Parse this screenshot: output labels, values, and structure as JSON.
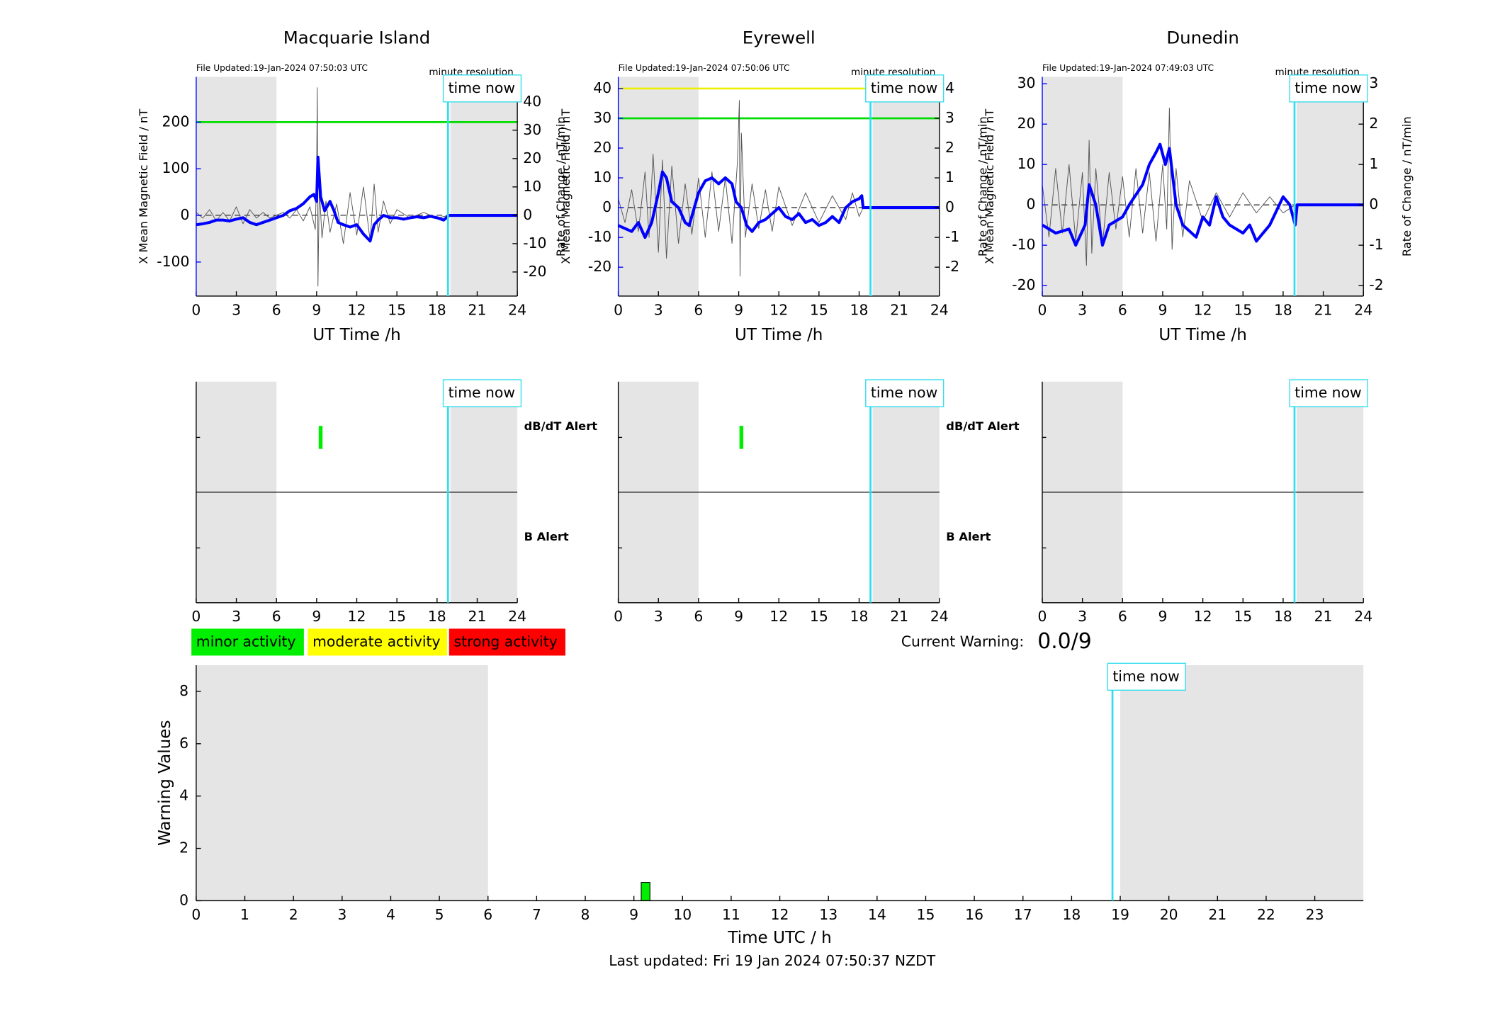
{
  "chart_data": [
    {
      "type": "line",
      "title": "Macquarie Island",
      "file_updated": "File Updated:19-Jan-2024 07:50:03 UTC",
      "resolution": "minute resolution",
      "xlabel": "UT Time /h",
      "ylabel": "X Mean Magnetic Field / nT",
      "y2label": "Rate of Change / nT/min",
      "xlim": [
        0,
        24
      ],
      "xticks": [
        0,
        3,
        6,
        9,
        12,
        15,
        18,
        21,
        24
      ],
      "ylim": [
        -173,
        297
      ],
      "yticks": [
        -100,
        0,
        100,
        200
      ],
      "y2lim": [
        -28.5,
        48.8
      ],
      "y2ticks": [
        -20,
        -10,
        0,
        10,
        20,
        30,
        40
      ],
      "shaded": [
        [
          0,
          6
        ],
        [
          19,
          24
        ]
      ],
      "time_now": 18.82,
      "time_now_label": "time now",
      "thresholds": [
        {
          "value": 200,
          "color": "#00dd00"
        }
      ],
      "series": [
        {
          "color": "#0000ff",
          "x": [
            0,
            0.5,
            1,
            1.5,
            2,
            2.5,
            3,
            3.5,
            4,
            4.5,
            5,
            5.5,
            6,
            6.5,
            7,
            7.5,
            8,
            8.5,
            8.8,
            9,
            9.1,
            9.3,
            9.6,
            10,
            10.3,
            10.6,
            11,
            11.5,
            12,
            12.5,
            13,
            13.3,
            13.6,
            14,
            14.5,
            15,
            15.5,
            16,
            16.5,
            17,
            17.5,
            18,
            18.5,
            18.9,
            24
          ],
          "values": [
            -20,
            -18,
            -15,
            -10,
            -10,
            -12,
            -8,
            -5,
            -15,
            -20,
            -15,
            -10,
            -5,
            0,
            10,
            15,
            25,
            40,
            45,
            30,
            125,
            40,
            10,
            30,
            10,
            -15,
            -20,
            -25,
            -20,
            -40,
            -55,
            -20,
            -10,
            0,
            -5,
            -5,
            -8,
            -5,
            -3,
            -5,
            -2,
            -5,
            -10,
            0,
            0
          ]
        },
        {
          "color": "#555555",
          "axis": "y2",
          "x": [
            0,
            0.5,
            1,
            1.5,
            2,
            2.5,
            3,
            3.5,
            4,
            4.5,
            5,
            5.5,
            6,
            6.5,
            7,
            7.5,
            8,
            8.5,
            8.9,
            9.0,
            9.05,
            9.1,
            9.2,
            9.4,
            9.7,
            10,
            10.5,
            11,
            11.5,
            12,
            12.5,
            13,
            13.3,
            13.6,
            14,
            14.5,
            15,
            16,
            17,
            18,
            18.9
          ],
          "values": [
            1,
            -1,
            2,
            -2,
            1,
            -2,
            3,
            -3,
            2,
            -1,
            1,
            -1,
            0,
            1,
            -1,
            2,
            -2,
            3,
            -5,
            15,
            45,
            -25,
            10,
            -8,
            5,
            -6,
            4,
            -10,
            8,
            -7,
            10,
            -9,
            11,
            -6,
            5,
            -3,
            2,
            -1,
            1,
            -1,
            0
          ]
        }
      ]
    },
    {
      "type": "line",
      "title": "Eyrewell",
      "file_updated": "File Updated:19-Jan-2024 07:50:06 UTC",
      "resolution": "minute resolution",
      "xlabel": "UT Time /h",
      "ylabel": "X Mean Magnetic Field / nT",
      "y2label": "Rate of Change / nT/min",
      "xlim": [
        0,
        24
      ],
      "xticks": [
        0,
        3,
        6,
        9,
        12,
        15,
        18,
        21,
        24
      ],
      "ylim": [
        -29.7,
        43.9
      ],
      "yticks": [
        -20,
        -10,
        0,
        10,
        20,
        30,
        40
      ],
      "y2lim": [
        -2.97,
        4.39
      ],
      "y2ticks": [
        -2,
        -1,
        0,
        1,
        2,
        3,
        4
      ],
      "shaded": [
        [
          0,
          6
        ],
        [
          19,
          24
        ]
      ],
      "time_now": 18.85,
      "time_now_label": "time now",
      "thresholds": [
        {
          "value": 40,
          "color": "#eeee00"
        },
        {
          "value": 30,
          "color": "#00dd00"
        }
      ],
      "series": [
        {
          "color": "#0000ff",
          "x": [
            0,
            0.5,
            1,
            1.5,
            2,
            2.5,
            3,
            3.3,
            3.6,
            4,
            4.5,
            5,
            5.3,
            6,
            6.5,
            7,
            7.5,
            8,
            8.5,
            8.8,
            9.2,
            9.6,
            10,
            10.5,
            11,
            11.5,
            12,
            12.5,
            13,
            13.5,
            14,
            14.5,
            15,
            15.5,
            16,
            16.5,
            17,
            17.5,
            18,
            18.2,
            18.3,
            24
          ],
          "values": [
            -6,
            -7,
            -8,
            -5,
            -10,
            -5,
            5,
            12,
            10,
            2,
            0,
            -5,
            -6,
            5,
            9,
            10,
            8,
            10,
            8,
            2,
            0,
            -6,
            -8,
            -5,
            -4,
            -2,
            0,
            -3,
            -4,
            -2,
            -5,
            -4,
            -6,
            -5,
            -3,
            -5,
            0,
            2,
            3,
            4,
            0,
            0
          ]
        },
        {
          "color": "#555555",
          "axis": "y2",
          "x": [
            0,
            0.5,
            1,
            1.5,
            2,
            2.3,
            2.6,
            3,
            3.3,
            3.6,
            4,
            4.5,
            5,
            5.5,
            6,
            6.5,
            7,
            7.5,
            8,
            8.5,
            8.9,
            9.05,
            9.1,
            9.2,
            9.5,
            10,
            10.5,
            11,
            11.5,
            12,
            13,
            14,
            15,
            16,
            17,
            17.5,
            18,
            18.3
          ],
          "values": [
            0.3,
            -0.5,
            0.6,
            -0.8,
            1.2,
            -1,
            1.8,
            -1.5,
            1.6,
            -1.7,
            1.4,
            -1.2,
            0.8,
            -0.9,
            1,
            -1,
            1.2,
            -0.8,
            1,
            -1.2,
            1.5,
            3.6,
            -2.3,
            2.5,
            -1,
            0.8,
            -0.7,
            0.6,
            -0.8,
            0.7,
            -0.6,
            0.5,
            -0.5,
            0.4,
            -0.4,
            0.5,
            -0.3,
            0
          ]
        }
      ]
    },
    {
      "type": "line",
      "title": "Dunedin",
      "file_updated": "File Updated:19-Jan-2024 07:49:03 UTC",
      "resolution": "minute resolution",
      "xlabel": "UT Time /h",
      "ylabel": "X Mean Magnetic Field / nT",
      "y2label": "Rate of Change / nT/min",
      "xlim": [
        0,
        24
      ],
      "xticks": [
        0,
        3,
        6,
        9,
        12,
        15,
        18,
        21,
        24
      ],
      "ylim": [
        -22.6,
        31.7
      ],
      "yticks": [
        -20,
        -10,
        0,
        10,
        20,
        30
      ],
      "y2lim": [
        -2.26,
        3.17
      ],
      "y2ticks": [
        -2,
        -1,
        0,
        1,
        2,
        3
      ],
      "shaded": [
        [
          0,
          6
        ],
        [
          19,
          24
        ]
      ],
      "time_now": 18.85,
      "time_now_label": "time now",
      "thresholds": [],
      "series": [
        {
          "color": "#0000ff",
          "x": [
            0,
            1,
            2,
            2.5,
            3.2,
            3.5,
            4,
            4.5,
            5,
            6,
            6.5,
            7.5,
            8,
            8.5,
            8.8,
            9.2,
            9.5,
            10,
            10.5,
            11.5,
            12,
            12.5,
            13,
            13.5,
            14,
            15,
            15.5,
            16,
            17,
            18,
            18.5,
            18.9,
            19.05,
            24
          ],
          "values": [
            -5,
            -7,
            -6,
            -10,
            -5,
            5,
            0,
            -10,
            -5,
            -3,
            0,
            5,
            10,
            13,
            15,
            10,
            14,
            0,
            -5,
            -8,
            -3,
            -5,
            2,
            -3,
            -5,
            -7,
            -5,
            -9,
            -5,
            2,
            0,
            -5,
            0,
            0
          ]
        },
        {
          "color": "#555555",
          "axis": "y2",
          "x": [
            0,
            0.5,
            1,
            1.5,
            2,
            2.5,
            3,
            3.3,
            3.5,
            3.7,
            4,
            4.5,
            5,
            5.5,
            6,
            6.5,
            7,
            7.5,
            8,
            8.5,
            9,
            9.3,
            9.5,
            9.7,
            10,
            10.5,
            11,
            12,
            13,
            14,
            15,
            16,
            17,
            18,
            18.9
          ],
          "values": [
            0.5,
            -0.8,
            0.9,
            -0.7,
            1,
            -0.9,
            0.8,
            -1.5,
            1.6,
            -1.2,
            0.9,
            -1,
            0.8,
            -0.6,
            0.7,
            -0.8,
            0.9,
            -0.7,
            0.8,
            -0.9,
            1,
            -0.6,
            2.4,
            -1.1,
            0.9,
            -0.8,
            0.6,
            -0.4,
            0.3,
            -0.3,
            0.3,
            -0.2,
            0.2,
            -0.2,
            0
          ]
        }
      ]
    },
    {
      "type": "alert",
      "xlim": [
        0,
        24
      ],
      "xticks": [
        0,
        3,
        6,
        9,
        12,
        15,
        18,
        21,
        24
      ],
      "shaded": [
        [
          0,
          6
        ],
        [
          19,
          24
        ]
      ],
      "time_now": 18.82,
      "time_now_label": "time now",
      "dbdt_label": "dB/dT Alert",
      "b_label": "B Alert",
      "dbdt_alerts": [
        9.3
      ],
      "alert_color": "#00ee00"
    },
    {
      "type": "alert",
      "xlim": [
        0,
        24
      ],
      "xticks": [
        0,
        3,
        6,
        9,
        12,
        15,
        18,
        21,
        24
      ],
      "shaded": [
        [
          0,
          6
        ],
        [
          19,
          24
        ]
      ],
      "time_now": 18.85,
      "time_now_label": "time now",
      "dbdt_label": "dB/dT Alert",
      "b_label": "B Alert",
      "dbdt_alerts": [
        9.2
      ],
      "alert_color": "#00ee00"
    },
    {
      "type": "alert",
      "xlim": [
        0,
        24
      ],
      "xticks": [
        0,
        3,
        6,
        9,
        12,
        15,
        18,
        21,
        24
      ],
      "shaded": [
        [
          0,
          6
        ],
        [
          19,
          24
        ]
      ],
      "time_now": 18.85,
      "time_now_label": "time now",
      "dbdt_alerts": [],
      "alert_color": "#00ee00"
    },
    {
      "type": "bar",
      "xlabel": "Time UTC / h",
      "ylabel": "Warning Values",
      "xlim": [
        0,
        24
      ],
      "xticks": [
        0,
        1,
        2,
        3,
        4,
        5,
        6,
        7,
        8,
        9,
        10,
        11,
        12,
        13,
        14,
        15,
        16,
        17,
        18,
        19,
        20,
        21,
        22,
        23
      ],
      "ylim": [
        0,
        9
      ],
      "yticks": [
        0,
        2,
        4,
        6,
        8
      ],
      "shaded": [
        [
          0,
          6
        ],
        [
          19,
          24
        ]
      ],
      "time_now": 18.84,
      "time_now_label": "time now",
      "bars": [
        {
          "x0": 9.15,
          "x1": 9.33,
          "value": 0.7,
          "color": "#00ee00"
        }
      ],
      "legend": [
        {
          "label": "minor activity",
          "color": "#00ee00"
        },
        {
          "label": "moderate activity",
          "color": "#ffff00"
        },
        {
          "label": "strong activity",
          "color": "#ff0000"
        }
      ],
      "current_warning_label": "Current Warning:",
      "current_warning": "0.0/9",
      "footer": "Last updated: Fri 19 Jan 2024 07:50:37 NZDT"
    }
  ]
}
